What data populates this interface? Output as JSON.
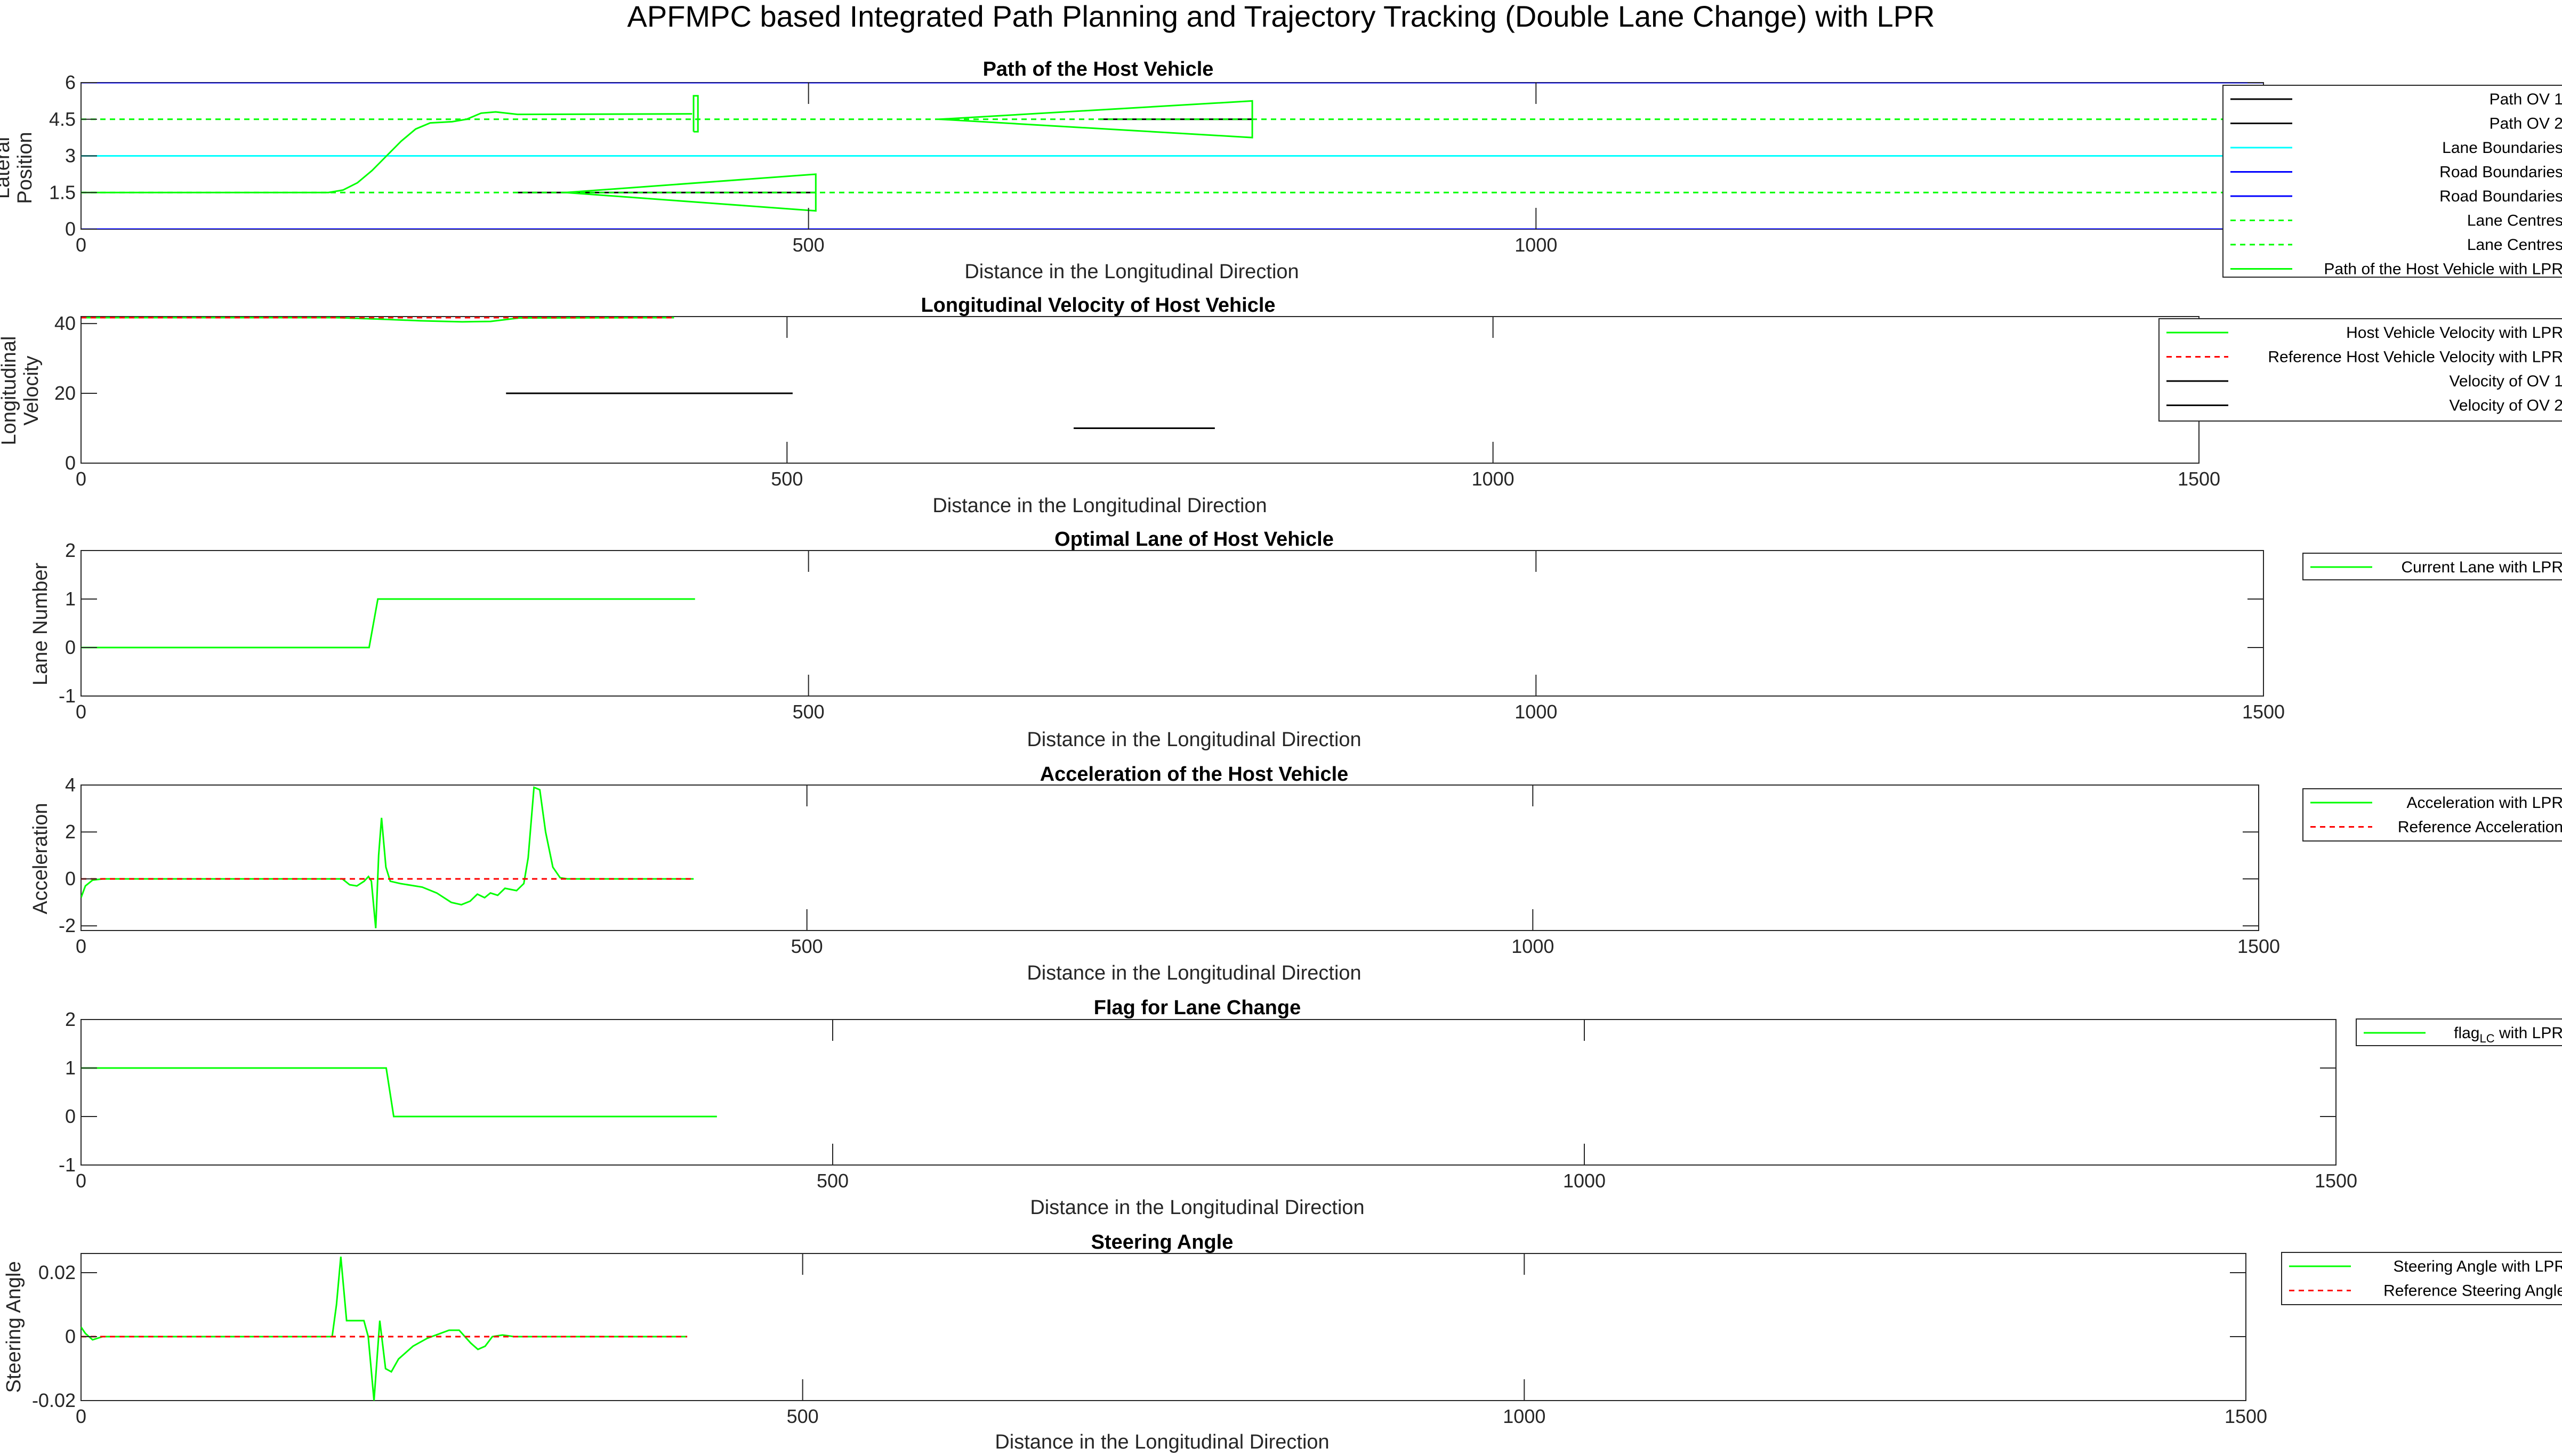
{
  "figure_title": "APFMPC based Integrated Path Planning and Trajectory Tracking (Double Lane Change) with LPR",
  "colors": {
    "green": "#00ff00",
    "ref": "#ff0000",
    "black": "#000000",
    "cyan": "#00ffff",
    "blue": "#0000ff",
    "axis": "#262626"
  },
  "chart_data": [
    {
      "type": "line",
      "title": "Path of the Host Vehicle",
      "xlabel": "Distance in the Longitudinal Direction",
      "ylabel": [
        "Lateral",
        "Position"
      ],
      "xlim": [
        0,
        1500
      ],
      "ylim": [
        0,
        6
      ],
      "xticks": [
        "0",
        "500",
        "1000",
        "1500"
      ],
      "xtick_values": [
        0,
        500,
        1000,
        1500
      ],
      "yticks": [
        "0",
        "1.5",
        "3",
        "4.5",
        "6"
      ],
      "ytick_values": [
        0,
        1.5,
        3,
        4.5,
        6
      ],
      "legend_position": "outside-right",
      "series": [
        {
          "name": "Path OV 1",
          "style": "solid",
          "color": "black",
          "points": [
            [
              300,
              1.5
            ],
            [
              505,
              1.5
            ]
          ],
          "outline": [
            [
              333,
              1.5
            ],
            [
              505,
              2.25
            ],
            [
              505,
              0.75
            ],
            [
              333,
              1.5
            ]
          ]
        },
        {
          "name": "Path OV 2",
          "style": "solid",
          "color": "black",
          "points": [
            [
              700,
              4.5
            ],
            [
              805,
              4.5
            ]
          ],
          "outline": [
            [
              590,
              4.5
            ],
            [
              805,
              5.25
            ],
            [
              805,
              3.75
            ],
            [
              590,
              4.5
            ]
          ]
        },
        {
          "name": "Lane Boundaries",
          "style": "solid",
          "color": "cyan",
          "points": [
            [
              0,
              3
            ],
            [
              1500,
              3
            ]
          ]
        },
        {
          "name": "Road Boundaries",
          "style": "solid",
          "color": "blue",
          "points": [
            [
              0,
              6
            ],
            [
              1500,
              6
            ]
          ]
        },
        {
          "name": "Road Boundaries",
          "style": "solid",
          "color": "blue",
          "points": [
            [
              0,
              0
            ],
            [
              1500,
              0
            ]
          ]
        },
        {
          "name": "Lane Centres",
          "style": "dashed",
          "color": "green",
          "points": [
            [
              0,
              1.5
            ],
            [
              1500,
              1.5
            ]
          ]
        },
        {
          "name": "Lane Centres",
          "style": "dashed",
          "color": "green",
          "points": [
            [
              0,
              4.5
            ],
            [
              1500,
              4.5
            ]
          ]
        },
        {
          "name": "Path of the Host Vehicle with LPR",
          "style": "solid",
          "color": "green",
          "points": [
            [
              0,
              1.5
            ],
            [
              170,
              1.5
            ],
            [
              180,
              1.6
            ],
            [
              190,
              1.9
            ],
            [
              200,
              2.4
            ],
            [
              210,
              3.0
            ],
            [
              220,
              3.6
            ],
            [
              230,
              4.1
            ],
            [
              240,
              4.35
            ],
            [
              255,
              4.4
            ],
            [
              265,
              4.5
            ],
            [
              275,
              4.75
            ],
            [
              285,
              4.8
            ],
            [
              300,
              4.7
            ],
            [
              420,
              4.72
            ]
          ],
          "outline": [
            [
              421,
              3.99
            ],
            [
              421,
              5.46
            ],
            [
              424,
              5.46
            ],
            [
              424,
              3.99
            ],
            [
              421,
              3.99
            ]
          ]
        }
      ]
    },
    {
      "type": "line",
      "title": "Longitudinal Velocity of Host Vehicle",
      "xlabel": "Distance in the Longitudinal Direction",
      "ylabel": [
        "Longitudinal",
        "Velocity"
      ],
      "xlim": [
        0,
        1500
      ],
      "ylim": [
        0,
        42
      ],
      "xticks": [
        "0",
        "500",
        "1000",
        "1500"
      ],
      "xtick_values": [
        0,
        500,
        1000,
        1500
      ],
      "yticks": [
        "0",
        "20",
        "40"
      ],
      "ytick_values": [
        0,
        20,
        40
      ],
      "legend_position": "outside-right",
      "series": [
        {
          "name": "Host Vehicle Velocity with LPR",
          "style": "solid",
          "color": "green",
          "points": [
            [
              0,
              41.7
            ],
            [
              180,
              41.7
            ],
            [
              210,
              41.3
            ],
            [
              240,
              40.8
            ],
            [
              270,
              40.5
            ],
            [
              290,
              40.6
            ],
            [
              310,
              41.6
            ],
            [
              420,
              41.7
            ]
          ]
        },
        {
          "name": "Reference Host Vehicle Velocity with LPR",
          "style": "dashed",
          "color": "ref",
          "points": [
            [
              0,
              41.7
            ],
            [
              420,
              41.7
            ]
          ]
        },
        {
          "name": "Velocity of OV 1",
          "style": "solid",
          "color": "black",
          "points": [
            [
              301,
              20
            ],
            [
              504,
              20
            ]
          ]
        },
        {
          "name": "Velocity of OV 2",
          "style": "solid",
          "color": "black",
          "points": [
            [
              703,
              10
            ],
            [
              803,
              10
            ]
          ]
        }
      ]
    },
    {
      "type": "line",
      "title": "Optimal Lane of Host Vehicle",
      "xlabel": "Distance in the Longitudinal Direction",
      "ylabel": [
        "Lane Number"
      ],
      "xlim": [
        0,
        1500
      ],
      "ylim": [
        -1,
        2
      ],
      "xticks": [
        "0",
        "500",
        "1000",
        "1500"
      ],
      "xtick_values": [
        0,
        500,
        1000,
        1500
      ],
      "yticks": [
        "-1",
        "0",
        "1",
        "2"
      ],
      "ytick_values": [
        -1,
        0,
        1,
        2
      ],
      "legend_position": "outside-right",
      "series": [
        {
          "name": "Current Lane with LPR",
          "style": "solid",
          "color": "green",
          "points": [
            [
              0,
              0
            ],
            [
              198,
              0
            ],
            [
              204,
              1
            ],
            [
              422,
              1
            ]
          ]
        }
      ]
    },
    {
      "type": "line",
      "title": "Acceleration of the Host Vehicle",
      "xlabel": "Distance in the Longitudinal Direction",
      "ylabel": [
        "Acceleration"
      ],
      "xlim": [
        0,
        1500
      ],
      "ylim": [
        -2.2,
        4
      ],
      "xticks": [
        "0",
        "500",
        "1000",
        "1500"
      ],
      "xtick_values": [
        0,
        500,
        1000,
        1500
      ],
      "yticks": [
        "-2",
        "0",
        "2",
        "4"
      ],
      "ytick_values": [
        -2,
        0,
        2,
        4
      ],
      "legend_position": "outside-right",
      "series": [
        {
          "name": "Acceleration with LPR",
          "style": "solid",
          "color": "green",
          "points": [
            [
              0,
              -0.8
            ],
            [
              3,
              -0.3
            ],
            [
              8,
              -0.05
            ],
            [
              15,
              0
            ],
            [
              180,
              0
            ],
            [
              185,
              -0.25
            ],
            [
              190,
              -0.3
            ],
            [
              195,
              -0.1
            ],
            [
              198,
              0.1
            ],
            [
              200,
              -0.1
            ],
            [
              203,
              -2.1
            ],
            [
              205,
              1.0
            ],
            [
              207,
              2.6
            ],
            [
              210,
              0.5
            ],
            [
              213,
              -0.1
            ],
            [
              220,
              -0.2
            ],
            [
              235,
              -0.35
            ],
            [
              245,
              -0.6
            ],
            [
              255,
              -1.0
            ],
            [
              262,
              -1.1
            ],
            [
              268,
              -0.95
            ],
            [
              273,
              -0.65
            ],
            [
              278,
              -0.8
            ],
            [
              282,
              -0.6
            ],
            [
              287,
              -0.7
            ],
            [
              292,
              -0.4
            ],
            [
              300,
              -0.5
            ],
            [
              305,
              -0.2
            ],
            [
              308,
              0.9
            ],
            [
              312,
              3.9
            ],
            [
              316,
              3.8
            ],
            [
              320,
              2.0
            ],
            [
              325,
              0.5
            ],
            [
              330,
              0.05
            ],
            [
              335,
              0
            ],
            [
              422,
              0
            ]
          ]
        },
        {
          "name": "Reference Acceleration",
          "style": "dashed",
          "color": "ref",
          "points": [
            [
              0,
              0
            ],
            [
              422,
              0
            ]
          ]
        }
      ]
    },
    {
      "type": "line",
      "title": "Flag for Lane Change",
      "xlabel": "Distance in the Longitudinal Direction",
      "ylabel": [],
      "xlim": [
        0,
        1500
      ],
      "ylim": [
        -1,
        2
      ],
      "xticks": [
        "0",
        "500",
        "1000",
        "1500"
      ],
      "xtick_values": [
        0,
        500,
        1000,
        1500
      ],
      "yticks": [
        "-1",
        "0",
        "1",
        "2"
      ],
      "ytick_values": [
        -1,
        0,
        1,
        2
      ],
      "legend_position": "outside-right",
      "series": [
        {
          "name": "flag_LC with LPR",
          "style": "solid",
          "color": "green",
          "legend_main": "flag",
          "legend_sub": "LC",
          "legend_suffix": " with LPR",
          "points": [
            [
              0,
              1
            ],
            [
              203,
              1
            ],
            [
              208,
              0
            ],
            [
              423,
              0
            ]
          ]
        }
      ]
    },
    {
      "type": "line",
      "title": "Steering Angle",
      "xlabel": "Distance in the Longitudinal Direction",
      "ylabel": [
        "Steering Angle"
      ],
      "xlim": [
        0,
        1500
      ],
      "ylim": [
        -0.02,
        0.026
      ],
      "xticks": [
        "0",
        "500",
        "1000",
        "1500"
      ],
      "xtick_values": [
        0,
        500,
        1000,
        1500
      ],
      "yticks": [
        "-0.02",
        "0",
        "0.02"
      ],
      "ytick_values": [
        -0.02,
        0,
        0.02
      ],
      "legend_position": "outside-right",
      "series": [
        {
          "name": "Steering Angle with LPR",
          "style": "solid",
          "color": "green",
          "points": [
            [
              0,
              0.003
            ],
            [
              3,
              0.001
            ],
            [
              8,
              -0.001
            ],
            [
              15,
              0
            ],
            [
              174,
              0
            ],
            [
              177,
              0.01
            ],
            [
              180,
              0.025
            ],
            [
              184,
              0.005
            ],
            [
              196,
              0.005
            ],
            [
              199,
              0
            ],
            [
              203,
              -0.02
            ],
            [
              207,
              0.005
            ],
            [
              211,
              -0.01
            ],
            [
              215,
              -0.011
            ],
            [
              220,
              -0.007
            ],
            [
              230,
              -0.003
            ],
            [
              240,
              -0.0005
            ],
            [
              255,
              0.002
            ],
            [
              262,
              0.002
            ],
            [
              270,
              -0.002
            ],
            [
              275,
              -0.004
            ],
            [
              280,
              -0.003
            ],
            [
              285,
              0
            ],
            [
              292,
              0.0005
            ],
            [
              300,
              0
            ],
            [
              420,
              0
            ]
          ]
        },
        {
          "name": "Reference Steering Angle",
          "style": "dashed",
          "color": "ref",
          "points": [
            [
              0,
              0
            ],
            [
              420,
              0
            ]
          ]
        }
      ]
    }
  ]
}
